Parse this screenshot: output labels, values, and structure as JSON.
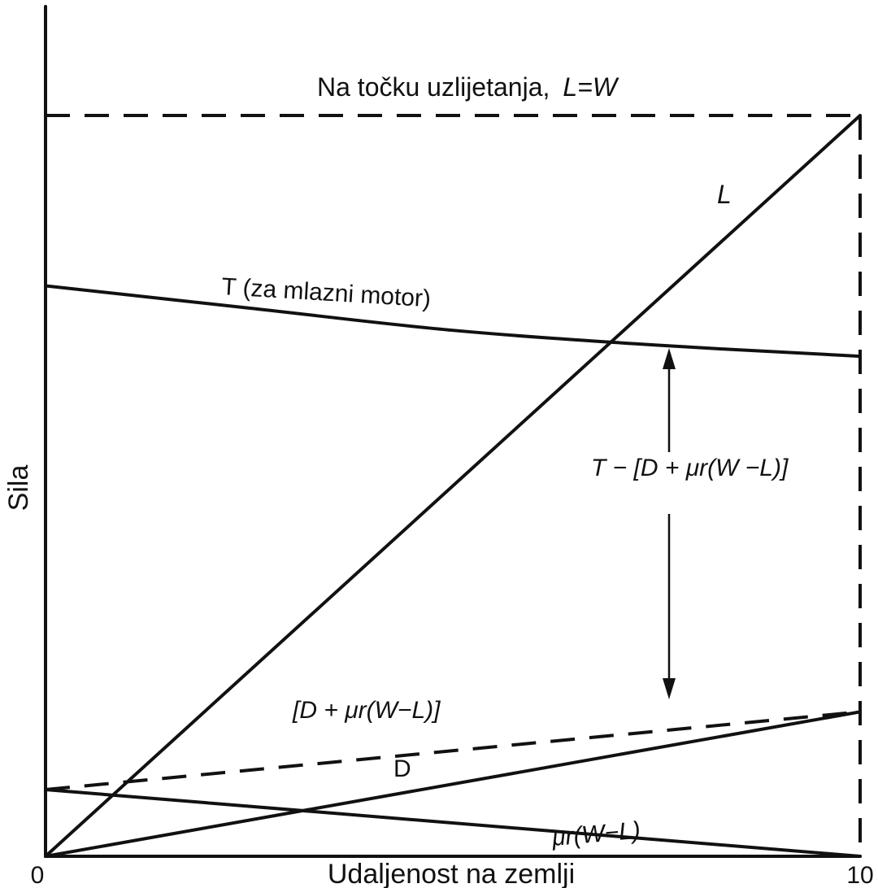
{
  "chart_data": {
    "type": "line",
    "title": "",
    "xlabel": "Udaljenost na zemlji",
    "ylabel": "Sila",
    "xlim": [
      0,
      10
    ],
    "ylim": [
      0,
      10
    ],
    "x_ticks": [
      "0",
      "10"
    ],
    "grid": false,
    "legend": "none",
    "series": [
      {
        "name": "L",
        "style": "solid",
        "x": [
          0,
          10
        ],
        "y": [
          0,
          10
        ]
      },
      {
        "name": "T (za mlazni motor)",
        "style": "solid",
        "x": [
          0,
          2.5,
          5,
          7.5,
          10
        ],
        "y": [
          7.7,
          7.4,
          7.1,
          6.9,
          6.75
        ]
      },
      {
        "name": "D",
        "style": "solid",
        "x": [
          0,
          10
        ],
        "y": [
          0,
          1.95
        ]
      },
      {
        "name": "μr(W−L)",
        "style": "solid",
        "x": [
          0,
          10
        ],
        "y": [
          0.9,
          0
        ]
      },
      {
        "name": "[D + μr(W−L)]",
        "style": "dashed",
        "x": [
          0,
          10
        ],
        "y": [
          0.9,
          1.95
        ]
      }
    ],
    "reference_lines": [
      {
        "orientation": "horizontal",
        "y": 10,
        "style": "dashed"
      },
      {
        "orientation": "vertical",
        "x": 10,
        "style": "dashed"
      }
    ],
    "annotations": {
      "takeoff": "Na točku uzlijetanja,",
      "takeoff_eq": "L=W",
      "arrow_label": "T − [D + μr(W −L)]"
    }
  }
}
